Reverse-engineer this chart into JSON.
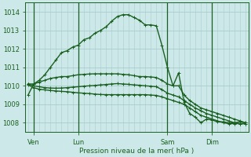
{
  "background_color": "#cce8e8",
  "grid_color": "#aacccc",
  "line_color": "#1a6020",
  "title": "Pression niveau de la mer( hPa )",
  "ylim": [
    1007.5,
    1014.5
  ],
  "yticks": [
    1008,
    1009,
    1010,
    1011,
    1012,
    1013,
    1014
  ],
  "total_points": 40,
  "day_labels": [
    "Ven",
    "Lun",
    "Sam",
    "Dim"
  ],
  "day_positions": [
    1,
    9,
    25,
    33
  ],
  "series": [
    [
      1009.5,
      1010.1,
      1010.3,
      1010.6,
      1011.0,
      1011.4,
      1011.8,
      1011.9,
      1012.1,
      1012.2,
      1012.5,
      1012.6,
      1012.85,
      1013.0,
      1013.2,
      1013.5,
      1013.75,
      1013.85,
      1013.85,
      1013.7,
      1013.55,
      1013.3,
      1013.3,
      1013.25,
      1012.2,
      1011.0,
      1010.0,
      1010.7,
      1009.1,
      1008.5,
      1008.3,
      1008.0,
      1008.2,
      1008.15,
      1008.05,
      1008.05,
      1008.0,
      1008.0,
      1008.05,
      1008.0
    ],
    [
      1010.1,
      1010.1,
      1010.2,
      1010.3,
      1010.4,
      1010.45,
      1010.5,
      1010.5,
      1010.55,
      1010.6,
      1010.62,
      1010.64,
      1010.65,
      1010.65,
      1010.65,
      1010.65,
      1010.65,
      1010.62,
      1010.6,
      1010.55,
      1010.5,
      1010.5,
      1010.48,
      1010.45,
      1010.3,
      1010.1,
      1010.0,
      1010.0,
      1009.5,
      1009.2,
      1009.0,
      1008.8,
      1008.7,
      1008.6,
      1008.5,
      1008.4,
      1008.3,
      1008.2,
      1008.1,
      1008.0
    ],
    [
      1010.1,
      1010.0,
      1009.95,
      1009.9,
      1009.88,
      1009.87,
      1009.88,
      1009.9,
      1009.93,
      1009.95,
      1009.98,
      1010.0,
      1010.02,
      1010.05,
      1010.07,
      1010.1,
      1010.12,
      1010.1,
      1010.08,
      1010.05,
      1010.03,
      1010.0,
      1009.98,
      1009.95,
      1009.8,
      1009.6,
      1009.5,
      1009.4,
      1009.2,
      1009.0,
      1008.8,
      1008.65,
      1008.5,
      1008.4,
      1008.3,
      1008.2,
      1008.1,
      1008.0,
      1007.95,
      1007.95
    ],
    [
      1010.05,
      1009.9,
      1009.82,
      1009.78,
      1009.75,
      1009.72,
      1009.7,
      1009.68,
      1009.65,
      1009.62,
      1009.6,
      1009.58,
      1009.55,
      1009.53,
      1009.52,
      1009.52,
      1009.52,
      1009.52,
      1009.52,
      1009.52,
      1009.52,
      1009.52,
      1009.5,
      1009.48,
      1009.4,
      1009.3,
      1009.2,
      1009.1,
      1009.0,
      1008.8,
      1008.6,
      1008.4,
      1008.3,
      1008.2,
      1008.1,
      1008.0,
      1007.95,
      1007.95,
      1007.95,
      1007.95
    ]
  ]
}
